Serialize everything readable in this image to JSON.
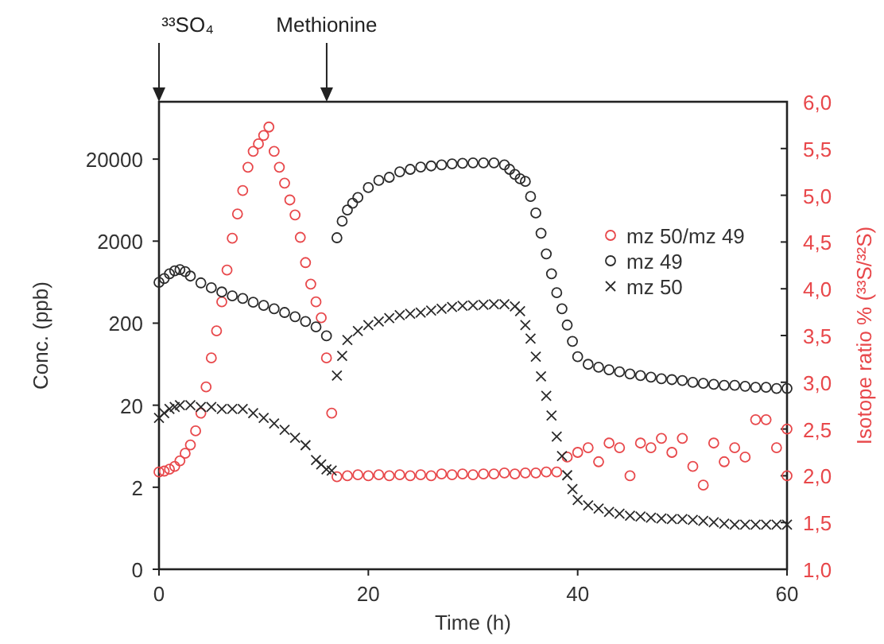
{
  "chart_data": {
    "type": "scatter",
    "xlabel": "Time (h)",
    "ylabel": "Conc. (ppb)",
    "y2label": "Isotope ratio % (³³S/³²S)",
    "xlim": [
      0,
      60
    ],
    "xticks": [
      0,
      20,
      40,
      60
    ],
    "log": "y",
    "ylim": [
      0.2,
      100000
    ],
    "yticks": [
      {
        "value": 0.2,
        "label": "0"
      },
      2,
      20,
      200,
      2000,
      20000
    ],
    "y2lim": [
      1,
      6
    ],
    "y2ticks": [
      {
        "value": 1,
        "label": "1,0"
      },
      {
        "value": 1.5,
        "label": "1,5"
      },
      {
        "value": 2,
        "label": "2,0"
      },
      {
        "value": 2.5,
        "label": "2,5"
      },
      {
        "value": 3,
        "label": "3,0"
      },
      {
        "value": 3.5,
        "label": "3,5"
      },
      {
        "value": 4,
        "label": "4,0"
      },
      {
        "value": 4.5,
        "label": "4,5"
      },
      {
        "value": 5,
        "label": "5,0"
      },
      {
        "value": 5.5,
        "label": "5,5"
      },
      {
        "value": 6,
        "label": "6,0"
      }
    ],
    "legend": "right",
    "grid": false,
    "annotations": [
      "³³SO₄",
      "Methionine"
    ],
    "series": [
      {
        "name": "mz 50/mz 49",
        "color": "#e8484b",
        "marker": "circle",
        "axis": "y2",
        "x": [
          0,
          0.5,
          1,
          1.5,
          2,
          2.5,
          3,
          3.5,
          4,
          4.5,
          5,
          5.5,
          6,
          6.5,
          7,
          7.5,
          8,
          8.5,
          9,
          9.5,
          10,
          10.5,
          11,
          11.5,
          12,
          12.5,
          13,
          13.5,
          14,
          14.5,
          15,
          15.5,
          16,
          16.5,
          17,
          18,
          19,
          20,
          21,
          22,
          23,
          24,
          25,
          26,
          27,
          28,
          29,
          30,
          31,
          32,
          33,
          34,
          35,
          36,
          37,
          38,
          39,
          40,
          41,
          42,
          43,
          44,
          45,
          46,
          47,
          48,
          49,
          50,
          51,
          52,
          53,
          54,
          55,
          56,
          57,
          58,
          59,
          60,
          60
        ],
        "values": [
          2.04,
          2.05,
          2.07,
          2.1,
          2.16,
          2.24,
          2.33,
          2.48,
          2.67,
          2.95,
          3.26,
          3.55,
          3.86,
          4.2,
          4.54,
          4.8,
          5.05,
          5.3,
          5.47,
          5.55,
          5.64,
          5.73,
          5.47,
          5.3,
          5.13,
          4.95,
          4.79,
          4.55,
          4.28,
          4.05,
          3.86,
          3.69,
          3.26,
          2.67,
          1.99,
          2.0,
          2.01,
          2.0,
          2.01,
          2.0,
          2.01,
          2.0,
          2.01,
          2.0,
          2.02,
          2.01,
          2.02,
          2.01,
          2.02,
          2.02,
          2.03,
          2.02,
          2.03,
          2.03,
          2.04,
          2.04,
          2.2,
          2.25,
          2.3,
          2.15,
          2.35,
          2.3,
          2.0,
          2.35,
          2.3,
          2.4,
          2.25,
          2.4,
          2.1,
          1.9,
          2.35,
          2.15,
          2.3,
          2.2,
          2.6,
          2.6,
          2.3,
          2.5,
          2.0
        ]
      },
      {
        "name": "mz 49",
        "color": "#2b2b2b",
        "marker": "circle",
        "x": [
          0,
          0.5,
          1,
          1.5,
          2,
          2.5,
          3,
          4,
          5,
          6,
          7,
          8,
          9,
          10,
          11,
          12,
          13,
          14,
          15,
          16,
          17,
          17.5,
          18,
          18.5,
          19,
          20,
          21,
          22,
          23,
          24,
          25,
          26,
          27,
          28,
          29,
          30,
          31,
          32,
          33,
          33.5,
          34,
          34.5,
          35,
          35.5,
          36,
          36.5,
          37,
          37.5,
          38,
          38.5,
          39,
          39.5,
          40,
          41,
          42,
          43,
          44,
          45,
          46,
          47,
          48,
          49,
          50,
          51,
          52,
          53,
          54,
          55,
          56,
          57,
          58,
          59,
          60
        ],
        "values": [
          630,
          700,
          800,
          870,
          900,
          850,
          750,
          620,
          540,
          480,
          430,
          400,
          360,
          330,
          300,
          270,
          240,
          210,
          180,
          140,
          2200,
          3500,
          4800,
          5800,
          6800,
          9000,
          11000,
          12000,
          14000,
          15000,
          16000,
          16500,
          17000,
          17500,
          17800,
          18000,
          18000,
          18000,
          17000,
          15000,
          13000,
          11500,
          10700,
          7000,
          4400,
          2500,
          1400,
          800,
          470,
          300,
          190,
          120,
          78,
          63,
          58,
          54,
          51,
          48,
          46,
          44,
          42,
          41,
          40,
          38,
          37,
          36,
          35,
          35,
          34,
          33,
          33,
          32,
          32
        ]
      },
      {
        "name": "mz 50",
        "color": "#2b2b2b",
        "marker": "cross",
        "x": [
          0,
          0.5,
          1,
          1.5,
          2,
          3,
          4,
          5,
          6,
          7,
          8,
          9,
          10,
          11,
          12,
          13,
          14,
          15,
          15.5,
          16,
          16.5,
          17,
          17.5,
          18,
          19,
          20,
          21,
          22,
          23,
          24,
          25,
          26,
          27,
          28,
          29,
          30,
          31,
          32,
          33,
          34,
          34.5,
          35,
          35.5,
          36,
          36.5,
          37,
          37.5,
          38,
          38.5,
          39,
          39.5,
          40,
          41,
          42,
          43,
          44,
          45,
          46,
          47,
          48,
          49,
          50,
          51,
          52,
          53,
          54,
          55,
          56,
          57,
          58,
          59,
          60
        ],
        "values": [
          14,
          16,
          18,
          19,
          20,
          20,
          19,
          19,
          18,
          18,
          18,
          16,
          14,
          12,
          10,
          8,
          6.5,
          4.3,
          3.8,
          3.3,
          3.2,
          46,
          80,
          125,
          160,
          190,
          210,
          230,
          250,
          260,
          270,
          285,
          300,
          315,
          325,
          330,
          335,
          340,
          340,
          320,
          280,
          190,
          130,
          78,
          45,
          26,
          15,
          8.3,
          4.8,
          2.8,
          1.9,
          1.4,
          1.2,
          1.1,
          1.0,
          0.95,
          0.9,
          0.88,
          0.85,
          0.83,
          0.82,
          0.82,
          0.8,
          0.78,
          0.75,
          0.72,
          0.7,
          0.7,
          0.7,
          0.7,
          0.7,
          0.7
        ]
      }
    ]
  }
}
